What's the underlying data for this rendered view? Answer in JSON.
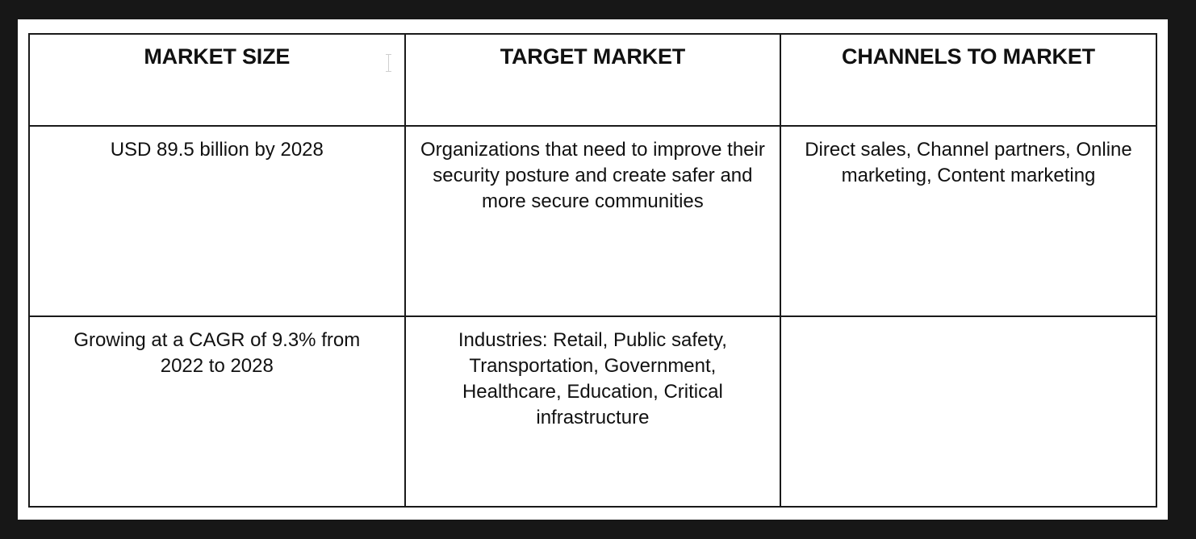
{
  "table": {
    "headers": [
      "MARKET SIZE",
      "TARGET MARKET",
      "CHANNELS TO MARKET"
    ],
    "rows": [
      [
        "USD 89.5 billion by 2028",
        "Organizations that need to improve their security posture and create safer and more secure communities",
        "Direct sales, Channel partners, Online marketing, Content marketing"
      ],
      [
        "Growing at a CAGR of 9.3% from 2022 to 2028",
        "Industries: Retail, Public safety, Transportation, Government, Healthcare, Education, Critical infrastructure",
        ""
      ]
    ]
  }
}
